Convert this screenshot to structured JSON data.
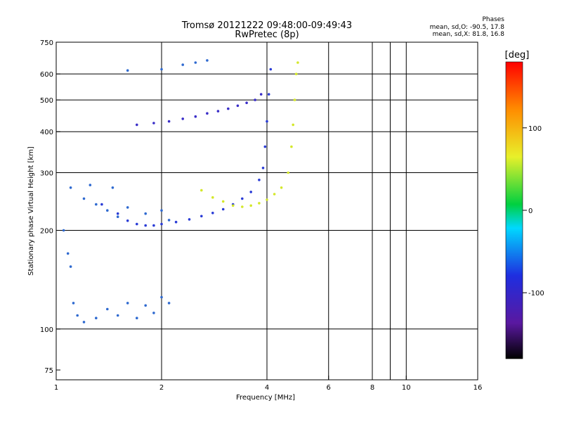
{
  "header": {
    "title": "Tromsø 20121222 09:48:00-09:49:43",
    "subtitle": "RwPretec (8p)",
    "phases_title": "Phases",
    "phases_line1": "mean, sd,O: -90.5, 17.8",
    "phases_line2": "mean, sd,X: 81.8, 16.8"
  },
  "chart_data": {
    "type": "scatter",
    "xlabel": "Frequency [MHz]",
    "ylabel": "Stationary phase Virtual Height [km]",
    "x_scale": "log",
    "y_scale": "log",
    "xlim": [
      1,
      16
    ],
    "ylim": [
      70,
      750
    ],
    "x_ticks": [
      {
        "value": 1,
        "label": "1"
      },
      {
        "value": 2,
        "label": "2"
      },
      {
        "value": 4,
        "label": "4"
      },
      {
        "value": 6,
        "label": "6"
      },
      {
        "value": 8,
        "label": "8"
      },
      {
        "value": 9,
        "label": ""
      },
      {
        "value": 10,
        "label": "10"
      },
      {
        "value": 16,
        "label": "16"
      }
    ],
    "x_gridlines": [
      2,
      4,
      6,
      8,
      9,
      10
    ],
    "y_ticks": [
      {
        "value": 75,
        "label": "75"
      },
      {
        "value": 100,
        "label": "100"
      },
      {
        "value": 200,
        "label": "200"
      },
      {
        "value": 300,
        "label": "300"
      },
      {
        "value": 400,
        "label": "400"
      },
      {
        "value": 500,
        "label": "500"
      },
      {
        "value": 600,
        "label": "600"
      },
      {
        "value": 750,
        "label": "750"
      }
    ],
    "y_gridlines": [
      100,
      200,
      300,
      400,
      500,
      600
    ],
    "colorbar": {
      "label": "[deg]",
      "range": [
        -180,
        180
      ],
      "ticks": [
        {
          "value": 100,
          "label": "100"
        },
        {
          "value": 0,
          "label": "0"
        },
        {
          "value": -100,
          "label": "-100"
        }
      ]
    },
    "grid": true,
    "series": [
      {
        "trace": "o_lower_trace",
        "color": "#2a3cd6",
        "phase": -100,
        "points": [
          [
            1.35,
            240
          ],
          [
            1.5,
            225
          ],
          [
            1.6,
            214
          ],
          [
            1.7,
            209
          ],
          [
            1.8,
            207
          ],
          [
            1.9,
            207
          ],
          [
            2.0,
            209
          ],
          [
            2.2,
            212
          ],
          [
            2.4,
            216
          ],
          [
            2.6,
            221
          ],
          [
            2.8,
            226
          ],
          [
            3.0,
            232
          ],
          [
            3.2,
            240
          ],
          [
            3.4,
            250
          ],
          [
            3.6,
            262
          ],
          [
            3.8,
            285
          ],
          [
            3.9,
            310
          ],
          [
            3.95,
            360
          ],
          [
            4.0,
            430
          ],
          [
            4.05,
            520
          ],
          [
            4.1,
            620
          ]
        ]
      },
      {
        "trace": "o_upper_trace",
        "color": "#3a2ec8",
        "phase": -110,
        "points": [
          [
            1.7,
            420
          ],
          [
            1.9,
            425
          ],
          [
            2.1,
            430
          ],
          [
            2.3,
            438
          ],
          [
            2.5,
            445
          ],
          [
            2.7,
            455
          ],
          [
            2.9,
            462
          ],
          [
            3.1,
            470
          ],
          [
            3.3,
            480
          ],
          [
            3.5,
            490
          ],
          [
            3.7,
            500
          ],
          [
            3.85,
            520
          ]
        ]
      },
      {
        "trace": "x_trace",
        "color": "#d4e82a",
        "phase": 95,
        "points": [
          [
            2.6,
            265
          ],
          [
            2.8,
            252
          ],
          [
            3.0,
            245
          ],
          [
            3.2,
            238
          ],
          [
            3.4,
            236
          ],
          [
            3.6,
            238
          ],
          [
            3.8,
            242
          ],
          [
            4.0,
            248
          ],
          [
            4.2,
            258
          ],
          [
            4.4,
            270
          ],
          [
            4.6,
            300
          ],
          [
            4.7,
            360
          ],
          [
            4.75,
            420
          ],
          [
            4.8,
            500
          ],
          [
            4.85,
            600
          ],
          [
            4.9,
            650
          ]
        ]
      },
      {
        "trace": "spread_blue",
        "color": "#2f6ad0",
        "phase": -90,
        "points": [
          [
            1.05,
            200
          ],
          [
            1.08,
            170
          ],
          [
            1.1,
            155
          ],
          [
            1.12,
            120
          ],
          [
            1.15,
            110
          ],
          [
            1.2,
            105
          ],
          [
            1.3,
            108
          ],
          [
            1.4,
            115
          ],
          [
            1.5,
            110
          ],
          [
            1.6,
            120
          ],
          [
            1.7,
            108
          ],
          [
            1.8,
            118
          ],
          [
            1.9,
            112
          ],
          [
            2.0,
            125
          ],
          [
            2.1,
            120
          ],
          [
            1.2,
            250
          ],
          [
            1.3,
            240
          ],
          [
            1.4,
            230
          ],
          [
            1.5,
            220
          ],
          [
            1.6,
            235
          ],
          [
            1.8,
            225
          ],
          [
            2.0,
            230
          ],
          [
            2.1,
            215
          ],
          [
            1.1,
            270
          ],
          [
            1.25,
            275
          ],
          [
            1.45,
            270
          ],
          [
            2.3,
            640
          ],
          [
            2.5,
            650
          ],
          [
            2.7,
            660
          ],
          [
            1.6,
            615
          ],
          [
            2.0,
            620
          ]
        ]
      }
    ]
  }
}
